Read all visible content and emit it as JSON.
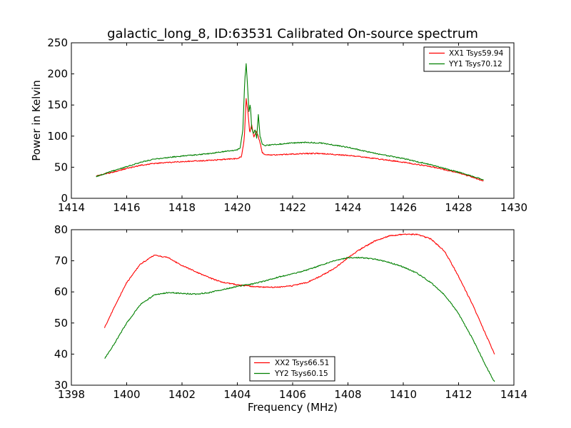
{
  "chart_data": [
    {
      "type": "line",
      "title": "galactic_long_8, ID:63531 Calibrated On-source spectrum",
      "xlabel": "",
      "ylabel": "Power in Kelvin",
      "xlim": [
        1414,
        1430
      ],
      "ylim": [
        0,
        250
      ],
      "xticks": [
        1414,
        1416,
        1418,
        1420,
        1422,
        1424,
        1426,
        1428,
        1430
      ],
      "yticks": [
        0,
        50,
        100,
        150,
        200,
        250
      ],
      "grid": false,
      "legend": "top-right",
      "series": [
        {
          "name": "XX1 Tsys59.94",
          "color": "#ff0000",
          "x": [
            1414.9,
            1415.5,
            1416.0,
            1416.5,
            1417.0,
            1418.0,
            1419.0,
            1420.0,
            1420.15,
            1420.25,
            1420.32,
            1420.38,
            1420.45,
            1420.52,
            1420.6,
            1420.68,
            1420.75,
            1420.82,
            1420.9,
            1421.0,
            1421.5,
            1422.0,
            1422.5,
            1423.0,
            1424.0,
            1425.0,
            1426.0,
            1427.0,
            1428.0,
            1428.9
          ],
          "y": [
            36,
            42,
            48,
            53,
            56,
            59,
            61,
            64,
            67,
            95,
            160,
            140,
            105,
            118,
            98,
            108,
            100,
            90,
            74,
            70,
            70,
            71,
            72,
            72,
            69,
            64,
            58,
            51,
            41,
            28
          ]
        },
        {
          "name": "YY1 Tsys70.12",
          "color": "#008000",
          "x": [
            1414.9,
            1415.5,
            1416.0,
            1416.5,
            1417.0,
            1418.0,
            1419.0,
            1420.0,
            1420.1,
            1420.2,
            1420.27,
            1420.32,
            1420.37,
            1420.42,
            1420.47,
            1420.52,
            1420.58,
            1420.64,
            1420.7,
            1420.76,
            1420.82,
            1420.9,
            1421.0,
            1421.5,
            1422.0,
            1422.5,
            1423.0,
            1424.0,
            1425.0,
            1426.0,
            1427.0,
            1428.0,
            1428.9
          ],
          "y": [
            35,
            44,
            51,
            58,
            63,
            68,
            72,
            78,
            81,
            110,
            190,
            216,
            180,
            140,
            152,
            112,
            104,
            110,
            97,
            135,
            100,
            88,
            85,
            87,
            89,
            90,
            89,
            82,
            72,
            64,
            54,
            42,
            30
          ]
        }
      ]
    },
    {
      "type": "line",
      "title": "",
      "xlabel": "Frequency (MHz)",
      "ylabel": "",
      "xlim": [
        1398,
        1414
      ],
      "ylim": [
        30,
        80
      ],
      "xticks": [
        1398,
        1400,
        1402,
        1404,
        1406,
        1408,
        1410,
        1412,
        1414
      ],
      "yticks": [
        30,
        40,
        50,
        60,
        70,
        80
      ],
      "grid": false,
      "legend": "bottom-center",
      "series": [
        {
          "name": "XX2 Tsys66.51",
          "color": "#ff0000",
          "x": [
            1399.2,
            1399.6,
            1400.0,
            1400.5,
            1401.0,
            1401.5,
            1402.0,
            1402.5,
            1403.0,
            1403.5,
            1404.0,
            1404.5,
            1405.0,
            1405.5,
            1406.0,
            1406.5,
            1407.0,
            1407.5,
            1408.0,
            1408.5,
            1409.0,
            1409.5,
            1410.0,
            1410.5,
            1411.0,
            1411.5,
            1412.0,
            1412.5,
            1413.0,
            1413.3
          ],
          "y": [
            48.5,
            56,
            63,
            69,
            71.8,
            71,
            68.5,
            66.5,
            64.5,
            63,
            62.3,
            61.8,
            61.5,
            61.5,
            62,
            63,
            65,
            67.5,
            71,
            74,
            76.5,
            78,
            78.5,
            78.5,
            77,
            73,
            65,
            56,
            46,
            40
          ]
        },
        {
          "name": "YY2 Tsys60.15",
          "color": "#008000",
          "x": [
            1399.2,
            1399.6,
            1400.0,
            1400.5,
            1401.0,
            1401.5,
            1402.0,
            1402.5,
            1403.0,
            1403.5,
            1404.0,
            1404.5,
            1405.0,
            1405.5,
            1406.0,
            1406.5,
            1407.0,
            1407.5,
            1408.0,
            1408.5,
            1409.0,
            1409.5,
            1410.0,
            1410.5,
            1411.0,
            1411.5,
            1412.0,
            1412.5,
            1413.0,
            1413.3
          ],
          "y": [
            38.5,
            44,
            50,
            56,
            59,
            59.8,
            59.5,
            59.3,
            59.8,
            60.8,
            61.8,
            62.5,
            63.5,
            64.8,
            65.8,
            67,
            68.5,
            70,
            71,
            71,
            70.5,
            69.5,
            68,
            66,
            63,
            59,
            53,
            45,
            36,
            31
          ]
        }
      ]
    }
  ]
}
